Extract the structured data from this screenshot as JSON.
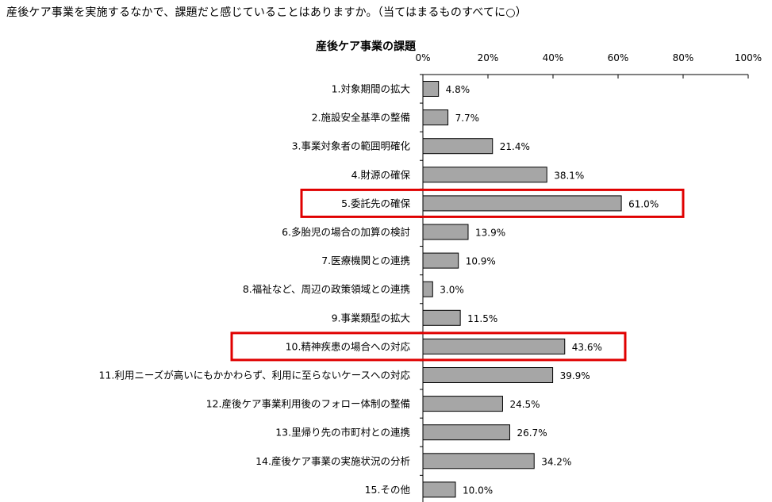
{
  "question": "産後ケア事業を実施するなかで、課題だと感じていることはありますか。（当てはまるものすべてに○）",
  "chart_data": {
    "type": "bar",
    "orientation": "horizontal",
    "title": "産後ケア事業の課題",
    "xlim": [
      0,
      100
    ],
    "xticks": [
      "0%",
      "20%",
      "40%",
      "60%",
      "80%",
      "100%"
    ],
    "categories": [
      "1.対象期間の拡大",
      "2.施設安全基準の整備",
      "3.事業対象者の範囲明確化",
      "4.財源の確保",
      "5.委託先の確保",
      "6.多胎児の場合の加算の検討",
      "7.医療機関との連携",
      "8.福祉など、周辺の政策領域との連携",
      "9.事業類型の拡大",
      "10.精神疾患の場合への対応",
      "11.利用ニーズが高いにもかかわらず、利用に至らないケースへの対応",
      "12.産後ケア事業利用後のフォロー体制の整備",
      "13.里帰り先の市町村との連携",
      "14.産後ケア事業の実施状況の分析",
      "15.その他"
    ],
    "values": [
      4.8,
      7.7,
      21.4,
      38.1,
      61.0,
      13.9,
      10.9,
      3.0,
      11.5,
      43.6,
      39.9,
      24.5,
      26.7,
      34.2,
      10.0
    ],
    "value_labels": [
      "4.8%",
      "7.7%",
      "21.4%",
      "38.1%",
      "61.0%",
      "13.9%",
      "10.9%",
      "3.0%",
      "11.5%",
      "43.6%",
      "39.9%",
      "24.5%",
      "26.7%",
      "34.2%",
      "10.0%"
    ],
    "highlighted": [
      "5.委託先の確保",
      "10.精神疾患の場合への対応"
    ],
    "colors": {
      "bar": "#a6a6a6",
      "bar_stroke": "#000000",
      "highlight": "#e00000"
    }
  }
}
